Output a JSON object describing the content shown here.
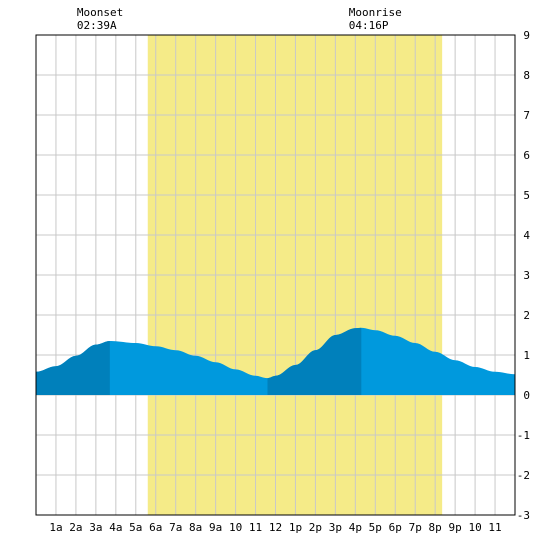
{
  "chart_data": {
    "type": "area",
    "annotations": [
      {
        "label": "Moonset",
        "time": "02:39A",
        "hour": 2.65
      },
      {
        "label": "Moonrise",
        "time": "04:16P",
        "hour": 16.27
      }
    ],
    "x_tick_labels": [
      "1a",
      "2a",
      "3a",
      "4a",
      "5a",
      "6a",
      "7a",
      "8a",
      "9a",
      "10",
      "11",
      "12",
      "1p",
      "2p",
      "3p",
      "4p",
      "5p",
      "6p",
      "7p",
      "8p",
      "9p",
      "10",
      "11"
    ],
    "y_tick_labels": [
      "9",
      "8",
      "7",
      "6",
      "5",
      "4",
      "3",
      "2",
      "1",
      "0",
      "-1",
      "-2",
      "-3"
    ],
    "xlim": [
      0,
      24
    ],
    "ylim": [
      -3,
      9
    ],
    "grid": true,
    "daylight": {
      "start_hour": 5.6,
      "end_hour": 20.35
    },
    "tide_extremes": [
      {
        "kind": "high",
        "hour": 3.7,
        "value": 1.35
      },
      {
        "kind": "low",
        "hour": 11.6,
        "value": 0.42
      },
      {
        "kind": "high",
        "hour": 16.3,
        "value": 1.68
      }
    ],
    "series": [
      {
        "x": [
          0,
          1,
          2,
          3,
          3.7,
          5,
          6,
          7,
          8,
          9,
          10,
          11,
          11.6,
          12,
          13,
          14,
          15,
          16,
          16.3,
          17,
          18,
          19,
          20,
          21,
          22,
          23,
          24
        ],
        "values": [
          0.58,
          0.72,
          0.98,
          1.26,
          1.35,
          1.3,
          1.22,
          1.12,
          0.98,
          0.82,
          0.64,
          0.48,
          0.42,
          0.48,
          0.75,
          1.12,
          1.5,
          1.67,
          1.68,
          1.62,
          1.48,
          1.3,
          1.08,
          0.87,
          0.7,
          0.58,
          0.52
        ]
      }
    ],
    "colors": {
      "daylight": "#f5eb88",
      "water": "#0099dd",
      "water_dark": "#0080bb",
      "grid": "#c8c8c8",
      "frame": "#000000"
    }
  }
}
